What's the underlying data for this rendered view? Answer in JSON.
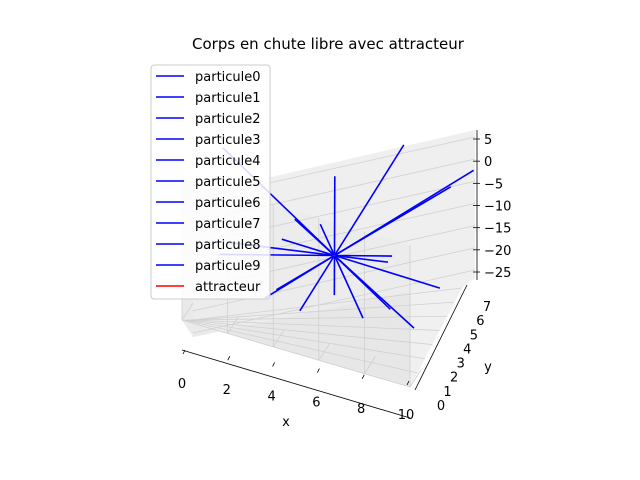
{
  "chart_data": {
    "type": "line3d",
    "title": "Corps en chute libre avec attracteur",
    "xlabel": "x",
    "ylabel": "y",
    "zlabel": "",
    "xlim": [
      0,
      10
    ],
    "ylim": [
      0,
      7
    ],
    "zlim": [
      -27,
      8
    ],
    "xticks": [
      "0",
      "2",
      "4",
      "6",
      "8",
      "10"
    ],
    "yticks": [
      "0",
      "1",
      "2",
      "3",
      "4",
      "5",
      "6",
      "7"
    ],
    "zticks": [
      "5",
      "0",
      "−5",
      "−10",
      "−15",
      "−20",
      "−25"
    ],
    "grid": true,
    "legend_position": "upper-left",
    "attractor": {
      "x": 5,
      "y": 3.5,
      "z": -15
    },
    "series": [
      {
        "name": "particule0",
        "color": "#0000ff",
        "start": {
          "x": 0.2,
          "y": 3.3,
          "z": 3
        }
      },
      {
        "name": "particule1",
        "color": "#0000ff",
        "start": {
          "x": 9.5,
          "y": 1.4,
          "z": -20
        }
      },
      {
        "name": "particule2",
        "color": "#0000ff",
        "start": {
          "x": 6.4,
          "y": 6.9,
          "z": 5
        }
      },
      {
        "name": "particule3",
        "color": "#0000ff",
        "start": {
          "x": 8.9,
          "y": 5.0,
          "z": -20
        }
      },
      {
        "name": "particule4",
        "color": "#0000ff",
        "start": {
          "x": 1.3,
          "y": 0.7,
          "z": -14
        }
      },
      {
        "name": "particule5",
        "color": "#0000ff",
        "start": {
          "x": 8.7,
          "y": 6.4,
          "z": 0
        }
      },
      {
        "name": "particule6",
        "color": "#0000ff",
        "start": {
          "x": 7.6,
          "y": 0.7,
          "z": -19
        }
      },
      {
        "name": "particule7",
        "color": "#0000ff",
        "start": {
          "x": 4.0,
          "y": 5.6,
          "z": -3
        }
      },
      {
        "name": "particule8",
        "color": "#0000ff",
        "start": {
          "x": 0.5,
          "y": 3.1,
          "z": -18
        }
      },
      {
        "name": "particule9",
        "color": "#0000ff",
        "start": {
          "x": 9.8,
          "y": 6.2,
          "z": 6
        }
      },
      {
        "name": "attracteur",
        "color": "#ff0000",
        "start": {
          "x": 5,
          "y": 3.5,
          "z": -15
        }
      }
    ]
  }
}
